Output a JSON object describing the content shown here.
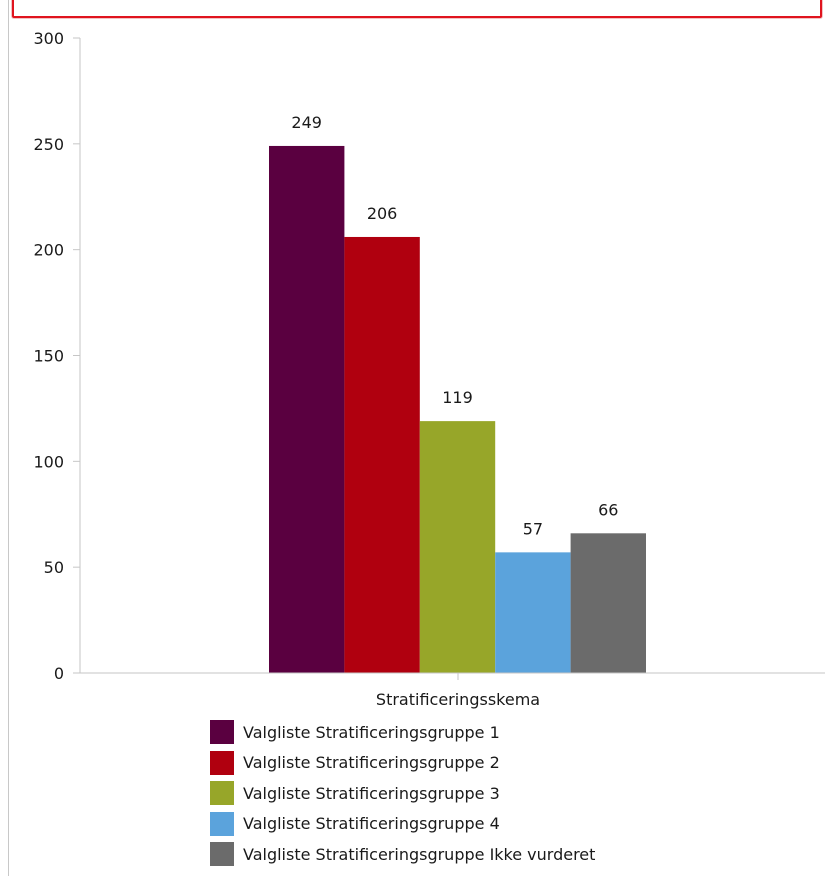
{
  "chart_data": {
    "type": "bar",
    "categories": [
      "Stratificeringsskema"
    ],
    "series": [
      {
        "name": "Valgliste Stratificeringsgruppe 1",
        "values": [
          249
        ],
        "color": "#5a0040"
      },
      {
        "name": "Valgliste Stratificeringsgruppe 2",
        "values": [
          206
        ],
        "color": "#b0000f"
      },
      {
        "name": "Valgliste Stratificeringsgruppe 3",
        "values": [
          119
        ],
        "color": "#97a629"
      },
      {
        "name": "Valgliste Stratificeringsgruppe 4",
        "values": [
          57
        ],
        "color": "#5ba3dc"
      },
      {
        "name": "Valgliste Stratificeringsgruppe Ikke vurderet",
        "values": [
          66
        ],
        "color": "#6b6b6b"
      }
    ],
    "y_ticks": [
      "0",
      "50",
      "100",
      "150",
      "200",
      "250",
      "300"
    ],
    "ylim": [
      0,
      300
    ],
    "grid": false,
    "legend_position": "bottom",
    "title": ""
  }
}
